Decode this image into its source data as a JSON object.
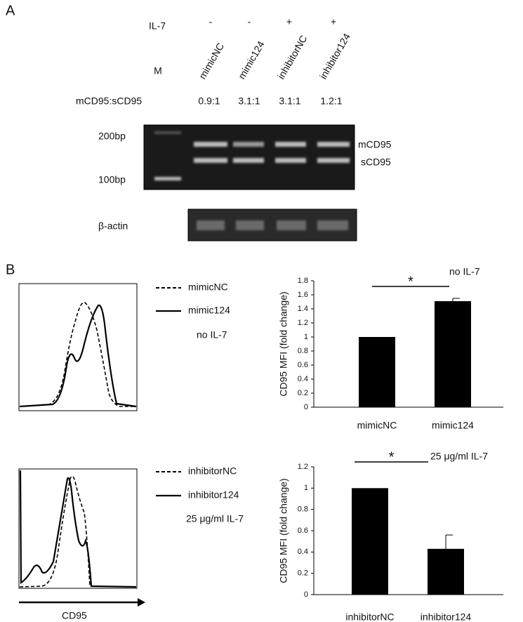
{
  "panel_a": {
    "label": "A",
    "il7_label": "IL-7",
    "il7_signs": [
      "-",
      "-",
      "+",
      "+"
    ],
    "marker_label": "M",
    "lanes": [
      "mimicNC",
      "mimic124",
      "inhibitorNC",
      "inhibitor124"
    ],
    "ratio_label": "mCD95:sCD95",
    "ratios": [
      "0.9:1",
      "3.1:1",
      "3.1:1",
      "1.2:1"
    ],
    "size_markers": [
      "200bp",
      "100bp"
    ],
    "band_labels": [
      "mCD95",
      "sCD95"
    ],
    "actin_label": "β-actin"
  },
  "panel_b": {
    "label": "B",
    "x_axis_label": "CD95",
    "histograms": [
      {
        "legend": [
          "mimicNC",
          "mimic124"
        ],
        "condition": "no IL-7"
      },
      {
        "legend": [
          "inhibitorNC",
          "inhibitor124"
        ],
        "condition": "25 μg/ml IL-7"
      }
    ]
  },
  "chart_data": [
    {
      "type": "bar",
      "ylabel": "CD95 MFI (fold change)",
      "annotation": "no IL-7",
      "significance": "*",
      "categories": [
        "mimicNC",
        "mimic124"
      ],
      "values": [
        1.0,
        1.51
      ],
      "errors": [
        0.0,
        0.04
      ],
      "color": "#000000",
      "ylim": [
        0,
        1.8
      ],
      "yticks": [
        0,
        0.2,
        0.4,
        0.6,
        0.8,
        1,
        1.2,
        1.4,
        1.6,
        1.8
      ]
    },
    {
      "type": "bar",
      "ylabel": "CD95 MFI (fold change)",
      "annotation": "25 μg/ml IL-7",
      "significance": "*",
      "categories": [
        "inhibitorNC",
        "inhibitor124"
      ],
      "values": [
        1.0,
        0.43
      ],
      "errors": [
        0.0,
        0.13
      ],
      "color": "#000000",
      "ylim": [
        0,
        1.2
      ],
      "yticks": [
        0,
        0.2,
        0.4,
        0.6,
        0.8,
        1,
        1.2
      ]
    }
  ]
}
